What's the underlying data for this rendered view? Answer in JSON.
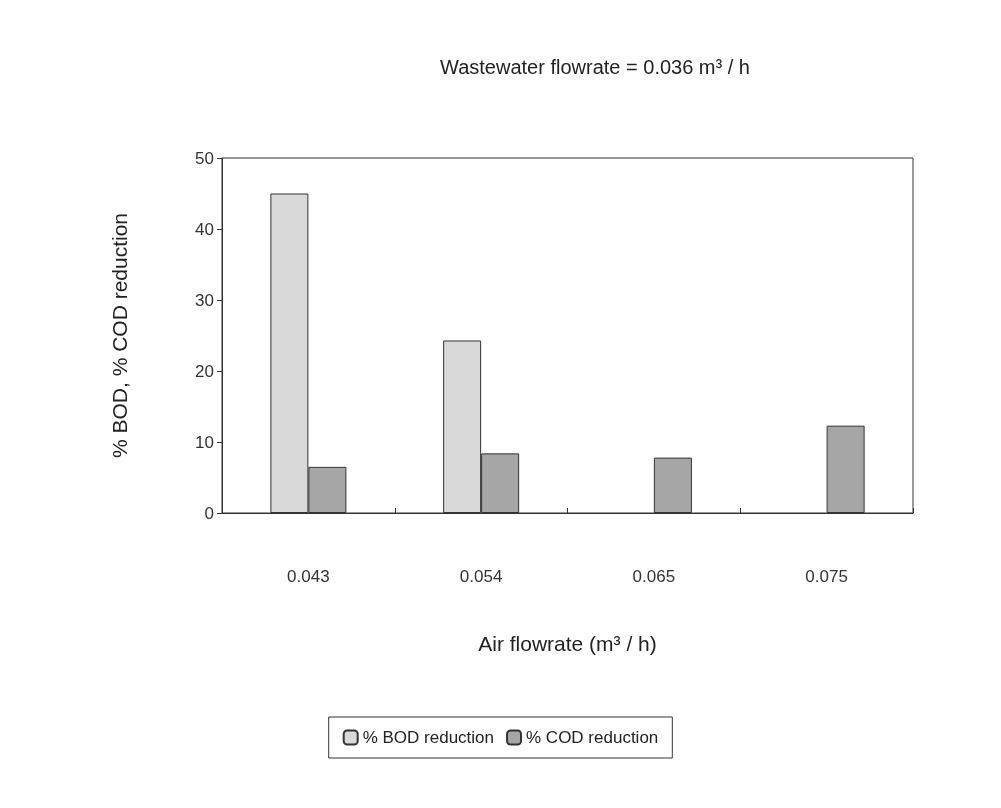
{
  "chart_data": {
    "type": "bar",
    "title": "Wastewater flowrate = 0.036 m³ / h",
    "xlabel": "Air flowrate (m³ / h)",
    "ylabel": "% BOD, % COD reduction",
    "categories": [
      "0.043",
      "0.054",
      "0.065",
      "0.075"
    ],
    "series": [
      {
        "name": "% BOD reduction",
        "color": "#d9d9d9",
        "values": [
          45,
          24.3,
          null,
          null
        ]
      },
      {
        "name": "% COD reduction",
        "color": "#a6a6a6",
        "values": [
          6.5,
          8.4,
          7.8,
          12.3
        ]
      }
    ],
    "ylim": [
      0,
      50
    ],
    "yticks": [
      0,
      10,
      20,
      30,
      40,
      50
    ],
    "grid": false,
    "legend": "bottom"
  }
}
